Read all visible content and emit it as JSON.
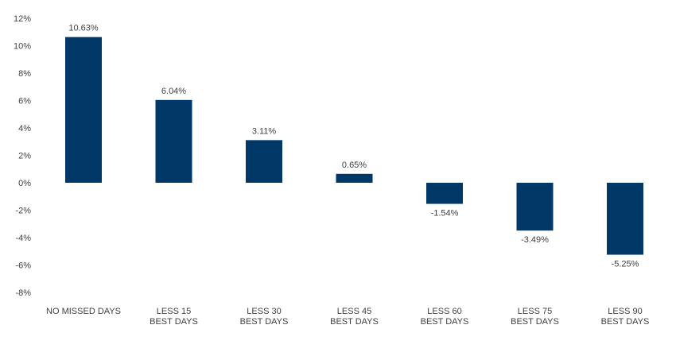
{
  "chart_data": {
    "type": "bar",
    "title": "",
    "xlabel": "",
    "ylabel": "",
    "categories": [
      [
        "NO MISSED DAYS"
      ],
      [
        "LESS 15",
        "BEST DAYS"
      ],
      [
        "LESS 30",
        "BEST DAYS"
      ],
      [
        "LESS 45",
        "BEST DAYS"
      ],
      [
        "LESS 60",
        "BEST DAYS"
      ],
      [
        "LESS 75",
        "BEST DAYS"
      ],
      [
        "LESS 90",
        "BEST DAYS"
      ]
    ],
    "values": [
      10.63,
      6.04,
      3.11,
      0.65,
      -1.54,
      -3.49,
      -5.25
    ],
    "data_labels": [
      "10.63%",
      "6.04%",
      "3.11%",
      "0.65%",
      "-1.54%",
      "-3.49%",
      "-5.25%"
    ],
    "ylim": [
      -8,
      12
    ],
    "yticks": [
      12,
      10,
      8,
      6,
      4,
      2,
      0,
      -2,
      -4,
      -6,
      -8
    ],
    "ytick_labels": [
      "12%",
      "10%",
      "8%",
      "6%",
      "4%",
      "2%",
      "0%",
      "-2%",
      "-4%",
      "-6%",
      "-8%"
    ],
    "grid": false,
    "legend": "none",
    "colors": {
      "bar": "#003868",
      "text": "#404040"
    }
  }
}
